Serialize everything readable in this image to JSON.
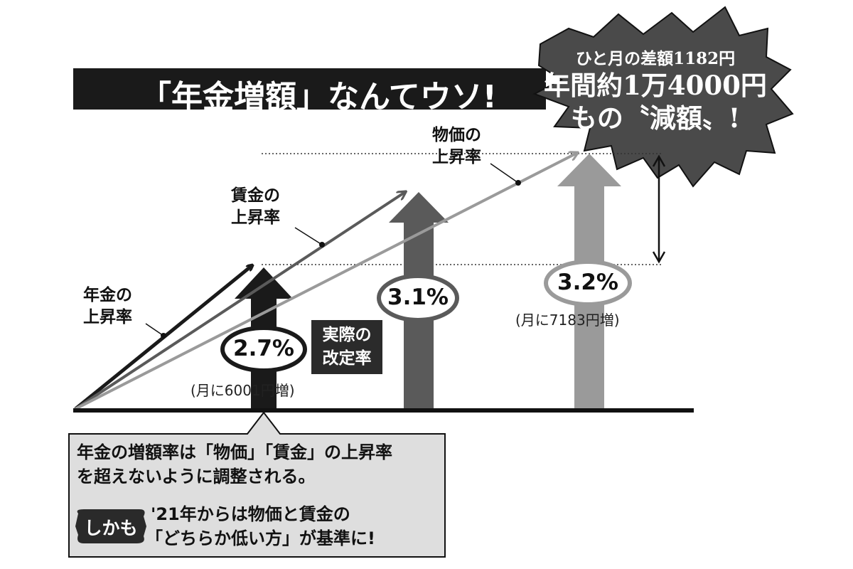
{
  "title": "「年金増額」なんてウソ!",
  "burst": {
    "line1": "ひと月の差額1182円",
    "line2": "年間約1万4000円",
    "line3": "もの〝減額〟!"
  },
  "labels": {
    "pension_rate": [
      "年金の",
      "上昇率"
    ],
    "wage_rate": [
      "賃金の",
      "上昇率"
    ],
    "price_rate": [
      "物価の",
      "上昇率"
    ],
    "actual_rate": [
      "実際の",
      "改定率"
    ]
  },
  "arrows": [
    {
      "value": "2.7%",
      "note": "(月に6001円増)",
      "color": "#1a1a1a"
    },
    {
      "value": "3.1%",
      "note": "",
      "color": "#5a5a5a"
    },
    {
      "value": "3.2%",
      "note": "(月に7183円増)",
      "color": "#9a9a9a"
    }
  ],
  "callout": {
    "line1": "年金の増額率は「物価」「賃金」の上昇率",
    "line2": "を超えないように調整される。",
    "badge": "しかも",
    "line3": "'21年からは物価と賃金の",
    "line4": "「どちらか低い方」が基準に!"
  },
  "colors": {
    "dark": "#1a1a1a",
    "mid": "#5a5a5a",
    "light": "#9a9a9a",
    "burst": "#4a4a4a",
    "callout_bg": "#dedede"
  }
}
